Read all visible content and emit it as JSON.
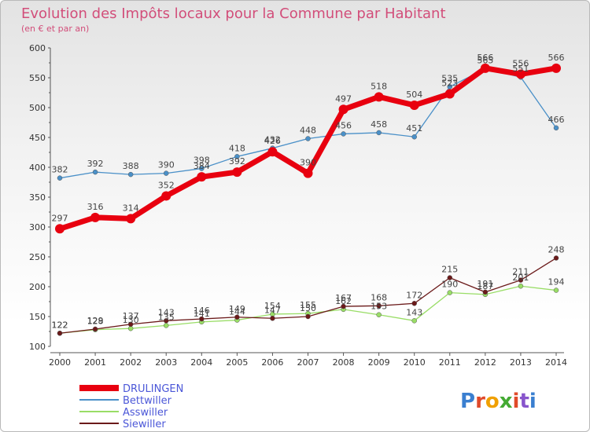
{
  "chart_data": {
    "type": "line",
    "title": "Evolution des Impôts locaux pour la Commune par Habitant",
    "subtitle": "(en € et par an)",
    "x": [
      "2000",
      "2001",
      "2002",
      "2003",
      "2004",
      "2005",
      "2006",
      "2007",
      "2008",
      "2009",
      "2010",
      "2011",
      "2012",
      "2013",
      "2014"
    ],
    "ylim": [
      100,
      600
    ],
    "yticks": [
      "100",
      "150",
      "200",
      "250",
      "300",
      "350",
      "400",
      "450",
      "500",
      "550",
      "600"
    ],
    "grid": false,
    "legend_position": "bottom-left",
    "series": [
      {
        "name": "DRULINGEN",
        "color": "#e8000f",
        "values": [
          297,
          316,
          314,
          352,
          384,
          392,
          426,
          390,
          497,
          518,
          504,
          523,
          566,
          556,
          566
        ]
      },
      {
        "name": "Bettwiller",
        "color": "#4a90c8",
        "values": [
          382,
          392,
          388,
          390,
          398,
          418,
          432,
          448,
          456,
          458,
          451,
          535,
          565,
          551,
          466
        ]
      },
      {
        "name": "Asswiller",
        "color": "#99dd66",
        "values": [
          122,
          128,
          130,
          135,
          141,
          144,
          154,
          155,
          162,
          153,
          143,
          190,
          187,
          201,
          194
        ]
      },
      {
        "name": "Siewiller",
        "color": "#6b1a1a",
        "values": [
          122,
          129,
          137,
          143,
          146,
          149,
          147,
          150,
          167,
          168,
          172,
          215,
          191,
          211,
          248
        ]
      }
    ],
    "data_labels": [
      {
        "series": "DRULINGEN",
        "labels": [
          "297",
          "316",
          "314",
          "352",
          "384",
          "392",
          "426",
          "390",
          "497",
          "518",
          "504",
          "523",
          "566",
          "556",
          "566"
        ]
      },
      {
        "series": "Bettwiller",
        "labels": [
          "382",
          "392",
          "388",
          "390",
          "398",
          "418",
          "432",
          "448",
          "456",
          "458",
          "451",
          "535",
          "565",
          "551",
          "466"
        ]
      },
      {
        "series": "Asswiller",
        "labels": [
          "122",
          "128",
          "130",
          "135",
          "141",
          "144",
          "154",
          "155",
          "162",
          "153",
          "143",
          "190",
          "187",
          "201",
          "194"
        ]
      },
      {
        "series": "Siewiller",
        "labels": [
          "122",
          "129",
          "137",
          "143",
          "146",
          "149",
          "147",
          "150",
          "167",
          "168",
          "172",
          "215",
          "191",
          "211",
          "248"
        ]
      }
    ]
  },
  "brand": {
    "logo_text": "Proxiti",
    "logo_colors": [
      "#3a7fd0",
      "#e04a2a",
      "#f0a000",
      "#44aa33",
      "#e04a2a",
      "#8855cc",
      "#3a7fd0"
    ]
  }
}
